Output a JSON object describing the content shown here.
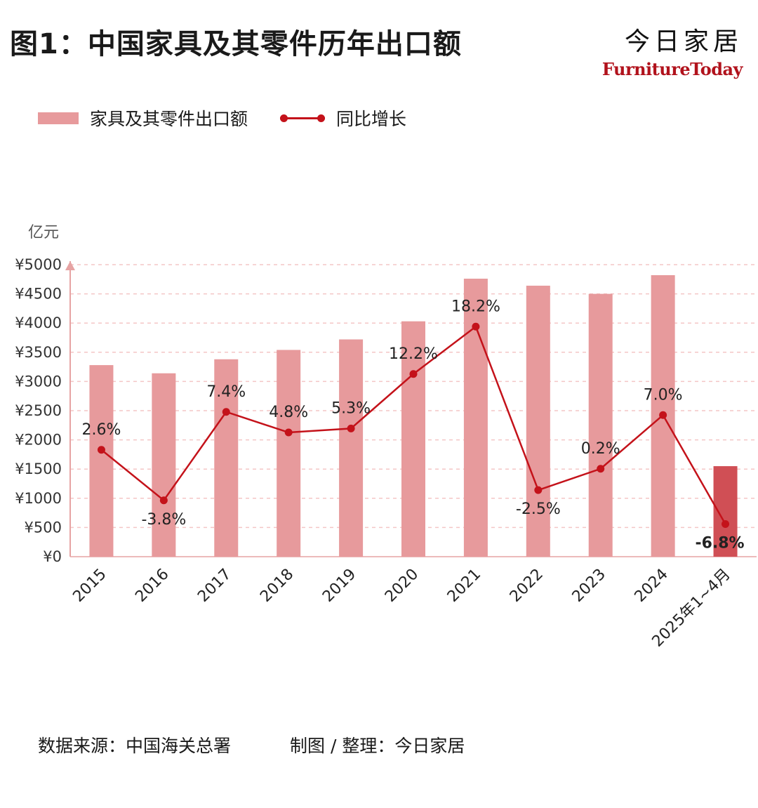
{
  "title": "图1：中国家具及其零件历年出口额",
  "brand": {
    "cn": "今日家居",
    "en": "FurnitureToday"
  },
  "colors": {
    "bar": "#e79a9c",
    "bar_highlight": "#d04f55",
    "line": "#c4121a",
    "grid": "#f4c6c6",
    "axis": "#e6a3a3"
  },
  "footer": {
    "source": "数据来源：中国海关总署",
    "credit": "制图 / 整理：今日家居"
  },
  "chart_data": {
    "type": "bar",
    "categories": [
      "2015",
      "2016",
      "2017",
      "2018",
      "2019",
      "2020",
      "2021",
      "2022",
      "2023",
      "2024",
      "2025年1~4月"
    ],
    "ylabel": "亿元",
    "ylim": [
      0,
      5000
    ],
    "yticks": [
      "¥0",
      "¥500",
      "¥1000",
      "¥1500",
      "¥2000",
      "¥2500",
      "¥3000",
      "¥3500",
      "¥4000",
      "¥4500",
      "¥5000"
    ],
    "grid": true,
    "legend_position": "top-left",
    "series": [
      {
        "name": "家具及其零件出口额",
        "type": "bar",
        "values": [
          3280,
          3140,
          3380,
          3540,
          3720,
          4030,
          4760,
          4640,
          4500,
          4820,
          1550
        ]
      },
      {
        "name": "同比增长",
        "type": "line",
        "values": [
          2.6,
          -3.8,
          7.4,
          4.8,
          5.3,
          12.2,
          18.2,
          -2.5,
          0.2,
          7.0,
          -6.8
        ],
        "labels": [
          "2.6%",
          "-3.8%",
          "7.4%",
          "4.8%",
          "5.3%",
          "12.2%",
          "18.2%",
          "-2.5%",
          "0.2%",
          "7.0%",
          "-6.8%"
        ]
      }
    ]
  }
}
